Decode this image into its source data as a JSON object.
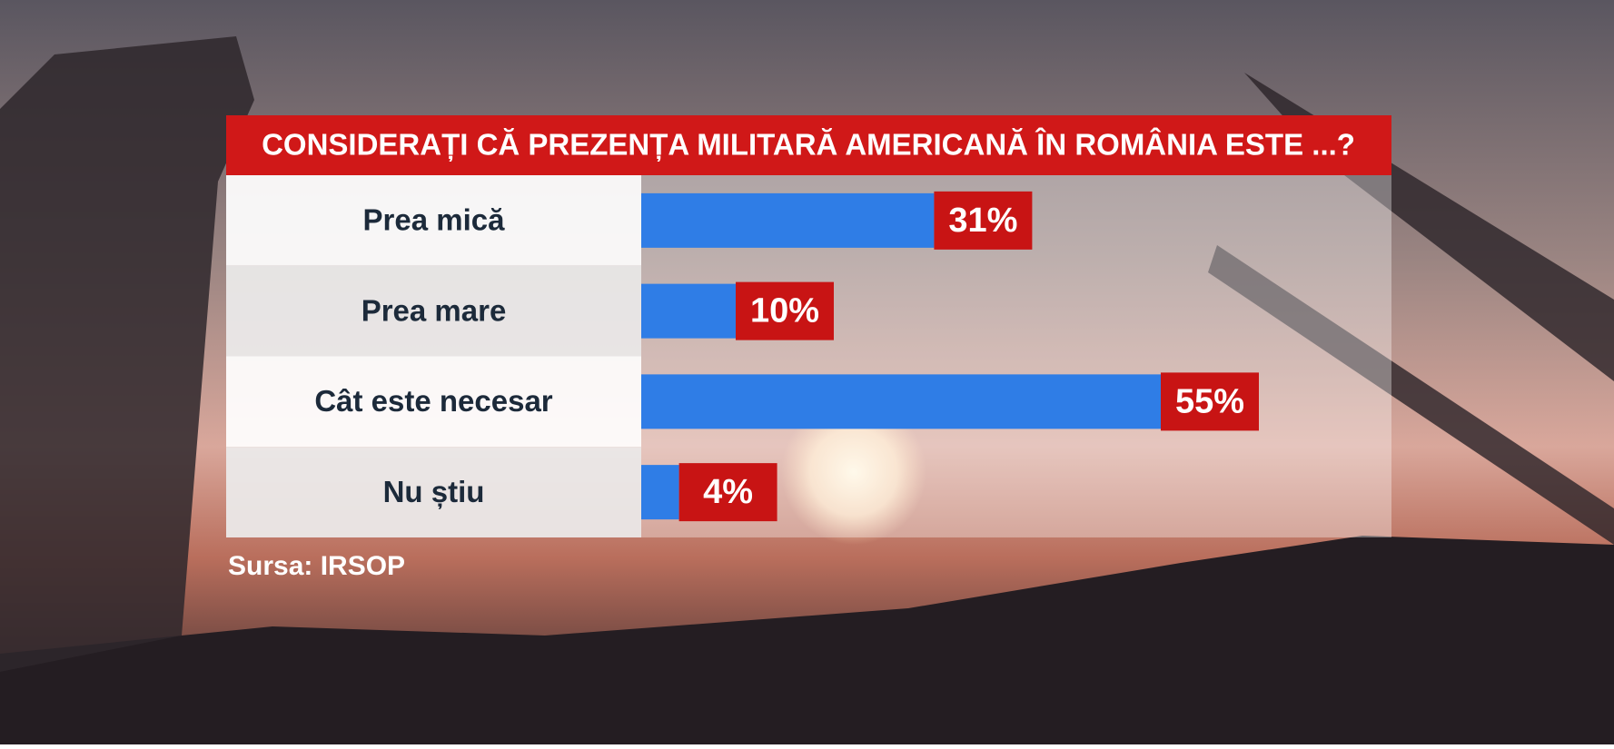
{
  "chart_data": {
    "type": "bar",
    "title": "CONSIDERAȚI CĂ PREZENȚA MILITARĂ AMERICANĂ ÎN ROMÂNIA ESTE ...?",
    "categories": [
      "Prea mică",
      "Prea mare",
      "Cât este necesar",
      "Nu știu"
    ],
    "values": [
      31,
      10,
      55,
      4
    ],
    "value_labels": [
      "31%",
      "10%",
      "55%",
      "4%"
    ],
    "color": "#2f7de6",
    "source": "Sursa: IRSOP"
  }
}
